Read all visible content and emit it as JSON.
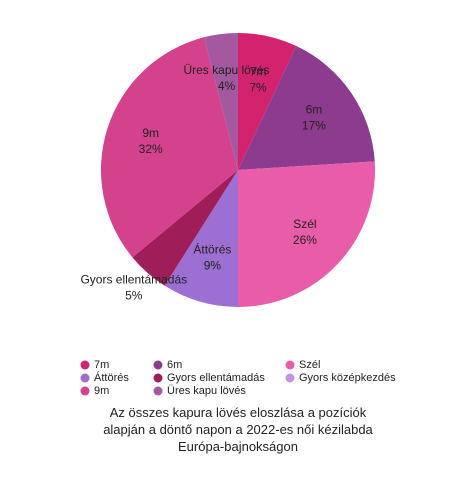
{
  "chart_data": {
    "type": "pie",
    "title": "Az összes kapura lövés eloszlása a pozíciók alapján a döntő napon a 2022-es női kézilabda Európa-bajnokságon",
    "categories": [
      "7m",
      "6m",
      "Szél",
      "Áttörés",
      "Gyors ellentámadás",
      "Gyors középkezdés",
      "9m",
      "Üres kapu lövés"
    ],
    "values": [
      7,
      17,
      26,
      9,
      5,
      0,
      32,
      4
    ],
    "value_labels": [
      "7%",
      "17%",
      "26%",
      "9%",
      "5%",
      null,
      "32%",
      "4%"
    ],
    "colors": [
      "#d3236f",
      "#8c3b8e",
      "#e95ca9",
      "#9d6fd3",
      "#9f1d58",
      "#c392e3",
      "#d4418d",
      "#a3589f"
    ],
    "legend": "bottom"
  }
}
